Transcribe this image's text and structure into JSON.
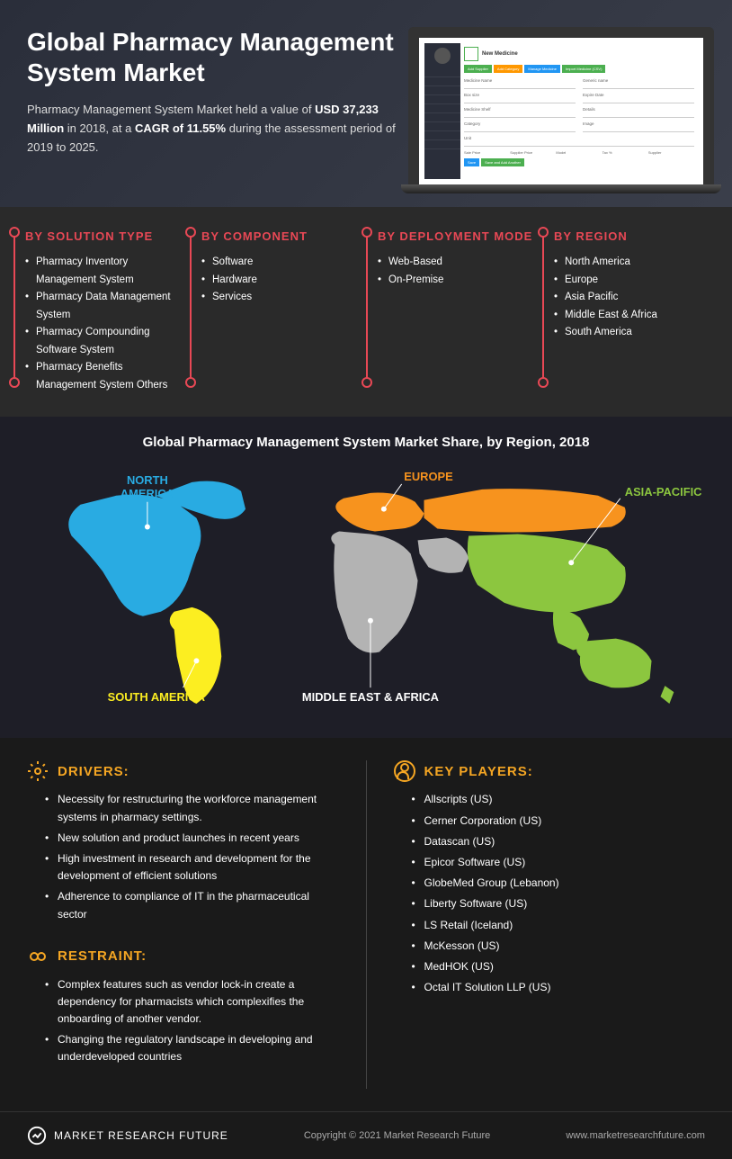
{
  "hero": {
    "title": "Global Pharmacy Management System Market",
    "desc_prefix": "Pharmacy Management System Market held a value of ",
    "value": "USD 37,233 Million",
    "desc_mid": " in 2018, at a ",
    "cagr": "CAGR of 11.55%",
    "desc_suffix": " during the assessment period of 2019 to 2025."
  },
  "laptop": {
    "title": "New Medicine",
    "btn1": "Add Supplier",
    "btn2": "Add Category",
    "btn3": "Manage Medicine",
    "btn4": "Import Medicine (CSV)",
    "btn1_color": "#4caf50",
    "btn2_color": "#ff9800",
    "btn3_color": "#2196f3",
    "btn4_color": "#4caf50",
    "save_btn": "Save",
    "save_add_btn": "Save and Add Another"
  },
  "categories": [
    {
      "title": "BY SOLUTION TYPE",
      "items": [
        "Pharmacy Inventory Management System",
        "Pharmacy Data Management System",
        "Pharmacy Compounding Software System",
        "Pharmacy Benefits Management System Others"
      ]
    },
    {
      "title": "BY COMPONENT",
      "items": [
        "Software",
        "Hardware",
        "Services"
      ]
    },
    {
      "title": "BY DEPLOYMENT MODE",
      "items": [
        "Web-Based",
        "On-Premise"
      ]
    },
    {
      "title": "BY REGION",
      "items": [
        "North America",
        "Europe",
        "Asia Pacific",
        "Middle East & Africa",
        "South America"
      ]
    }
  ],
  "map": {
    "title": "Global Pharmacy Management System Market Share, by Region, 2018",
    "regions": [
      {
        "name": "NORTH AMERICA",
        "color": "#29abe2",
        "label_color": "#29abe2"
      },
      {
        "name": "EUROPE",
        "color": "#f7931e",
        "label_color": "#f7931e"
      },
      {
        "name": "ASIA-PACIFIC",
        "color": "#8cc63f",
        "label_color": "#8cc63f"
      },
      {
        "name": "SOUTH AMERICA",
        "color": "#fcee21",
        "label_color": "#fcee21"
      },
      {
        "name": "MIDDLE EAST & AFRICA",
        "color": "#b3b3b3",
        "label_color": "#ffffff"
      }
    ]
  },
  "analysis": {
    "drivers": {
      "title": "DRIVERS:",
      "items": [
        "Necessity for restructuring the workforce management systems in pharmacy settings.",
        "New solution and product launches in recent years",
        "High investment in research and development for the development of efficient solutions",
        "Adherence to compliance of IT in the pharmaceutical sector"
      ]
    },
    "restraint": {
      "title": "RESTRAINT:",
      "items": [
        "Complex features such as vendor lock-in create a dependency for pharmacists which complexifies the onboarding of another vendor.",
        "Changing the regulatory landscape in developing and underdeveloped countries"
      ]
    },
    "keyplayers": {
      "title": "KEY PLAYERS:",
      "items": [
        "Allscripts (US)",
        "Cerner Corporation (US)",
        "Datascan (US)",
        "Epicor Software (US)",
        "GlobeMed Group (Lebanon)",
        "Liberty Software (US)",
        "LS Retail (Iceland)",
        "McKesson (US)",
        "MedHOK (US)",
        "Octal IT Solution LLP (US)"
      ]
    }
  },
  "footer": {
    "brand": "MARKET RESEARCH FUTURE",
    "copyright": "Copyright © 2021 Market Research Future",
    "url": "www.marketresearchfuture.com"
  },
  "colors": {
    "accent": "#e84855",
    "gold": "#f5a623",
    "bg_dark": "#1a1a1a",
    "bg_mid": "#2a2a2a"
  }
}
